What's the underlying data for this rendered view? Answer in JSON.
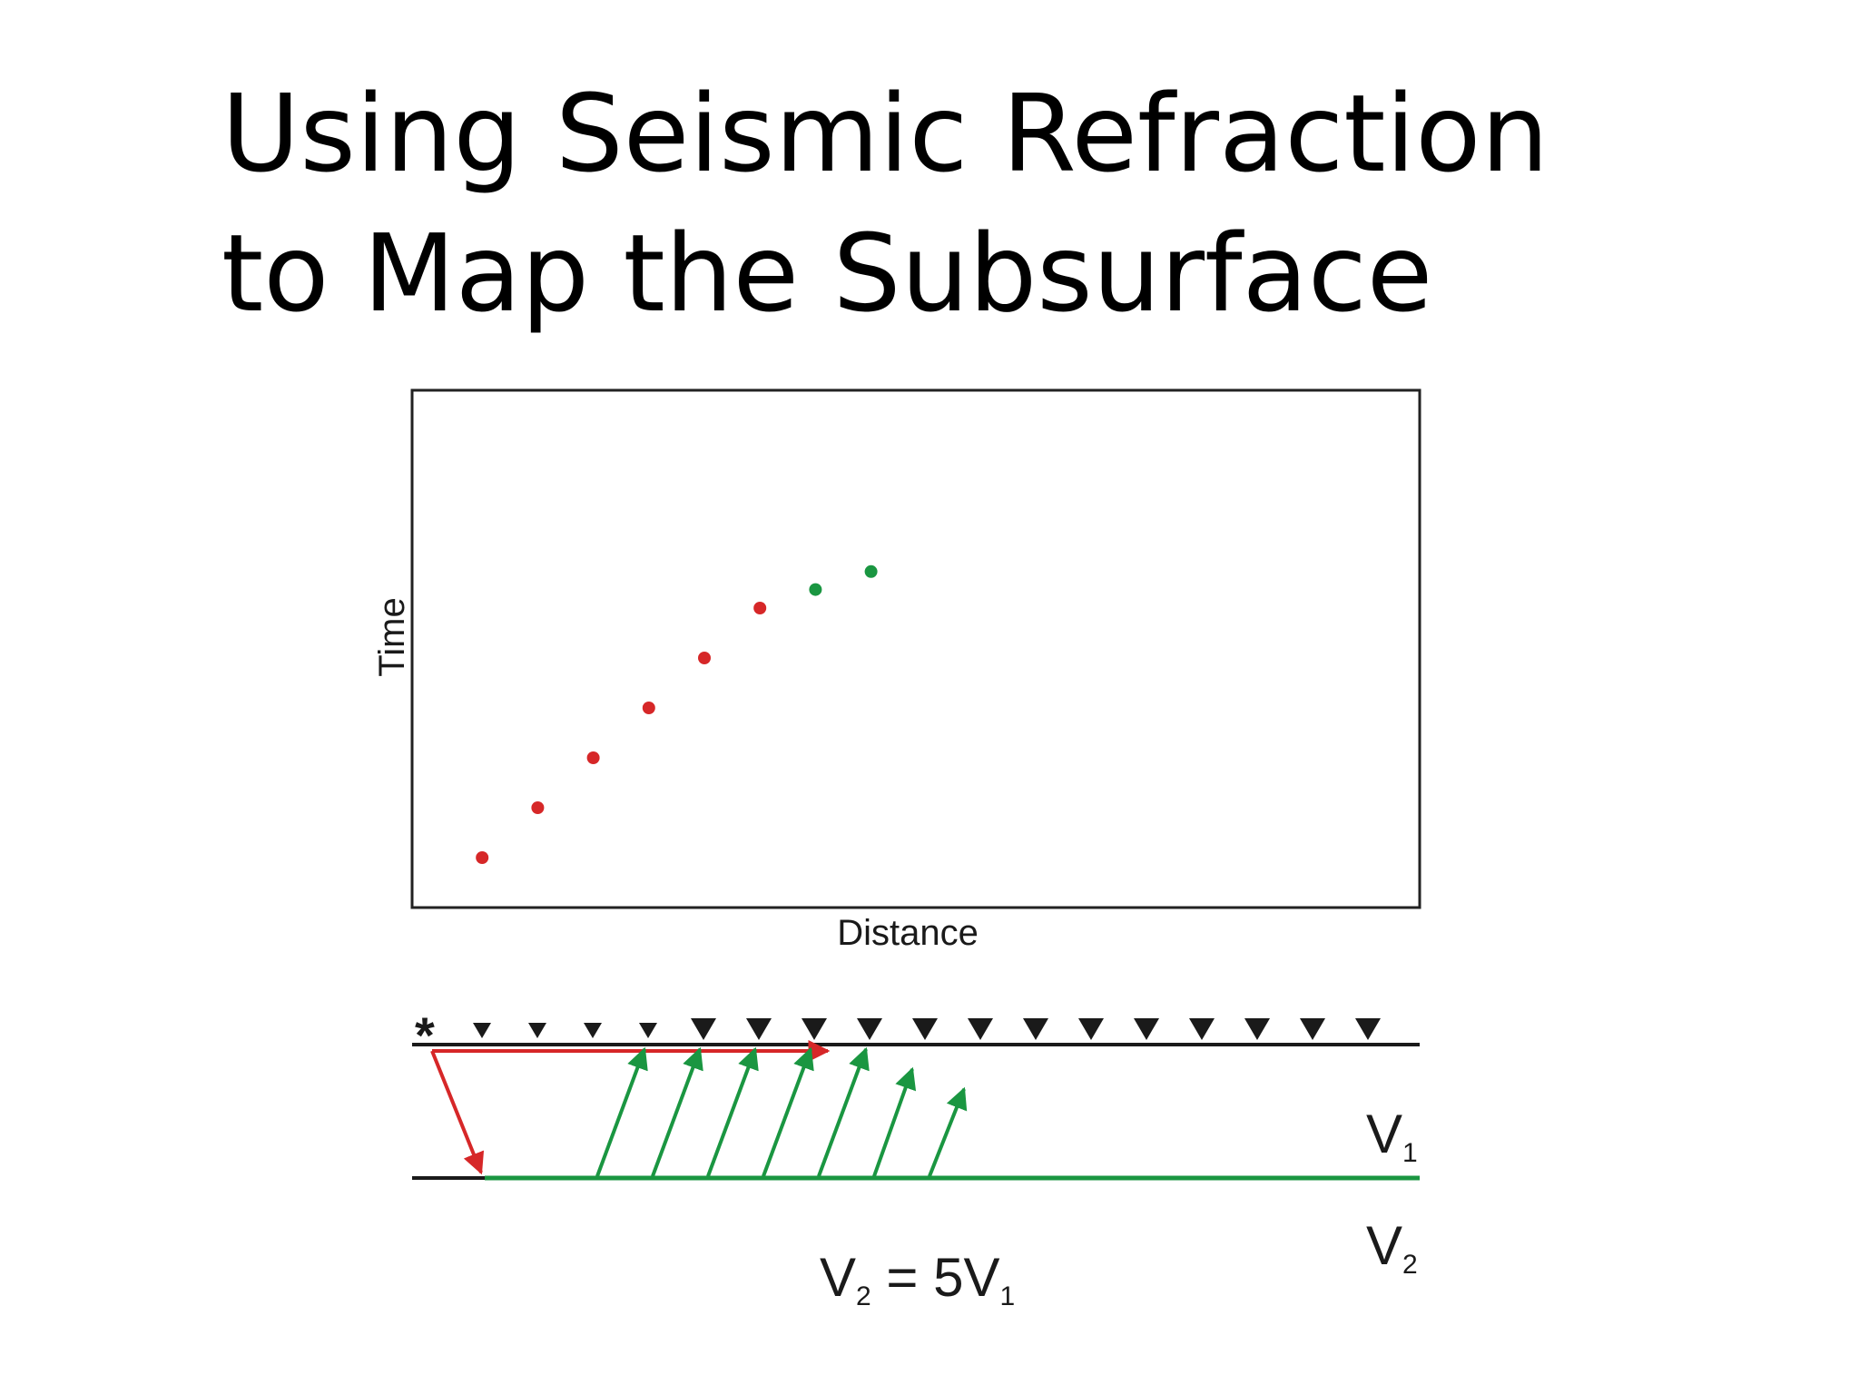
{
  "title": {
    "line1": "Using Seismic Refraction",
    "line2": "to Map the Subsurface"
  },
  "chart_data": {
    "type": "scatter",
    "xlabel": "Distance",
    "ylabel": "Time",
    "xlim": [
      0,
      18
    ],
    "ylim": [
      0,
      10
    ],
    "grid": false,
    "series": [
      {
        "color": "#d62728",
        "x": [
          1,
          2,
          3,
          4,
          5,
          6
        ],
        "y": [
          1,
          2,
          3,
          4,
          5,
          6
        ]
      },
      {
        "color": "#1a9641",
        "x": [
          7,
          8
        ],
        "y": [
          6.37,
          6.73
        ]
      }
    ]
  },
  "cross_section": {
    "source_symbol": "*",
    "layer1_label": {
      "main": "V",
      "sub": "1"
    },
    "layer2_label": {
      "main": "V",
      "sub": "2"
    },
    "equation": {
      "a": "V",
      "a_sub": "2",
      "mid": " = 5V",
      "b_sub": "1"
    },
    "receiver_count": 17,
    "direct_wave_color": "#d62728",
    "head_wave_color": "#1a9641"
  }
}
